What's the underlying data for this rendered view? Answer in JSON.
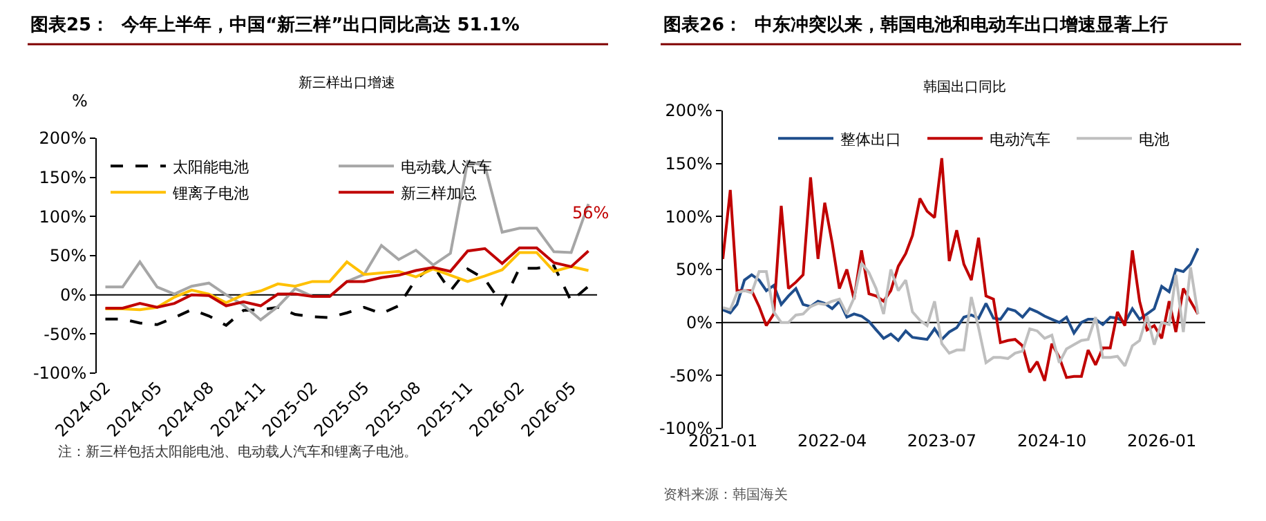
{
  "chart_data": [
    {
      "type": "line",
      "title": "图表25：  今年上半年，中国“新三样”出口同比高达 51.1%",
      "subtitle": "新三样出口增速",
      "ylabel": "%",
      "categories": [
        "2024-02",
        null,
        null,
        "2024-05",
        null,
        null,
        "2024-08",
        null,
        null,
        "2024-11",
        null,
        null,
        "2025-02",
        null,
        null,
        "2025-05",
        null,
        null,
        "2025-08",
        null,
        null,
        "2025-11",
        null,
        null,
        "2026-02",
        null,
        null,
        "2026-05",
        null
      ],
      "series": [
        {
          "name": "太阳能电池",
          "color": "#000000",
          "line_style": "dashed",
          "values": [
            -31,
            -31,
            -36,
            -38,
            -29,
            -19,
            -27,
            -39,
            -20,
            -19,
            -16,
            -25,
            -28,
            -29,
            -23,
            -16,
            -24,
            -14,
            20,
            37,
            5,
            33,
            20,
            -12,
            34,
            34,
            37,
            -8,
            11
          ]
        },
        {
          "name": "电动载人汽车",
          "color": "#a6a6a6",
          "values": [
            10,
            10,
            42,
            10,
            1,
            11,
            15,
            0,
            -13,
            -32,
            -15,
            8,
            -2,
            -2,
            17,
            26,
            63,
            45,
            57,
            38,
            53,
            170,
            165,
            80,
            85,
            85,
            55,
            54,
            116
          ]
        },
        {
          "name": "锂离子电池",
          "color": "#ffc000",
          "values": [
            -18,
            -18,
            -19,
            -16,
            -3,
            6,
            1,
            -10,
            0,
            5,
            14,
            11,
            17,
            17,
            42,
            26,
            28,
            30,
            23,
            33,
            25,
            17,
            24,
            32,
            54,
            54,
            30,
            36,
            31
          ]
        },
        {
          "name": "新三样加总",
          "color": "#c00000",
          "values": [
            -17,
            -17,
            -11,
            -16,
            -11,
            0,
            -1,
            -14,
            -9,
            -14,
            1,
            1,
            -2,
            -2,
            17,
            17,
            22,
            25,
            31,
            35,
            30,
            56,
            59,
            40,
            60,
            60,
            41,
            36,
            56
          ]
        }
      ],
      "ylim": [
        -100,
        200
      ],
      "yticks": [
        {
          "value": -100,
          "label": "-100%"
        },
        {
          "value": -50,
          "label": "-50%"
        },
        {
          "value": 0,
          "label": "0%"
        },
        {
          "value": 50,
          "label": "50%"
        },
        {
          "value": 100,
          "label": "100%"
        },
        {
          "value": 150,
          "label": "150%"
        },
        {
          "value": 200,
          "label": "200%"
        }
      ],
      "annotations": [
        {
          "text": "56%",
          "y": 56
        },
        "注：新三样包括太阳能电池、电动载人汽车和锂离子电池。"
      ],
      "ref_lines": [
        {
          "axis": "y",
          "value": 0,
          "color": "#000000"
        }
      ],
      "grid": false,
      "legend": "top",
      "marker": "none"
    },
    {
      "type": "line",
      "title": "图表26：  中东冲突以来，韩国电池和电动车出口增速显著上行",
      "subtitle": "韩国出口同比",
      "x": [
        "2021-01",
        "2021-02",
        "2021-03",
        "2021-04",
        "2021-05",
        "2021-06",
        "2021-07",
        "2021-08",
        "2021-09",
        "2021-10",
        "2021-11",
        "2021-12",
        "2022-01",
        "2022-02",
        "2022-03",
        "2022-04",
        "2022-05",
        "2022-06",
        "2022-07",
        "2022-08",
        "2022-09",
        "2022-10",
        "2022-11",
        "2022-12",
        "2023-01",
        "2023-02",
        "2023-03",
        "2023-04",
        "2023-05",
        "2023-06",
        "2023-07",
        "2023-08",
        "2023-09",
        "2023-10",
        "2023-11",
        "2023-12",
        "2024-01",
        "2024-02",
        "2024-03",
        "2024-04",
        "2024-05",
        "2024-06",
        "2024-07",
        "2024-08",
        "2024-09",
        "2024-10",
        "2024-11",
        "2024-12",
        "2025-01",
        "2025-02",
        "2025-03",
        "2025-04",
        "2025-05",
        "2025-06",
        "2025-07",
        "2025-08",
        "2025-09",
        "2025-10",
        "2025-11",
        "2025-12",
        "2026-01",
        "2026-02",
        "2026-03",
        "2026-04",
        "2026-05",
        "2026-06"
      ],
      "series": [
        {
          "name": "整体出口",
          "color": "#1f4e8c",
          "values": [
            12,
            9,
            17,
            40,
            45,
            40,
            30,
            35,
            17,
            25,
            32,
            17,
            15,
            20,
            18,
            13,
            20,
            5,
            8,
            6,
            1,
            -7,
            -15,
            -11,
            -17,
            -8,
            -14,
            -15,
            -16,
            -6,
            -16,
            -9,
            -5,
            5,
            7,
            4,
            18,
            4,
            3,
            13,
            11,
            5,
            13,
            10,
            6,
            3,
            0,
            5,
            -10,
            0,
            3,
            3,
            -2,
            5,
            4,
            0,
            13,
            3,
            8,
            13,
            34,
            29,
            50,
            48,
            55,
            70
          ]
        },
        {
          "name": "电动汽车",
          "color": "#c00000",
          "values": [
            60,
            125,
            30,
            30,
            30,
            15,
            -3,
            8,
            110,
            32,
            38,
            45,
            137,
            60,
            113,
            75,
            32,
            50,
            22,
            68,
            27,
            25,
            20,
            30,
            53,
            65,
            82,
            117,
            105,
            99,
            155,
            58,
            87,
            55,
            40,
            80,
            25,
            22,
            -19,
            -17,
            -16,
            -22,
            -47,
            -37,
            -55,
            -20,
            -33,
            -52,
            -51,
            -51,
            -26,
            -40,
            -24,
            -24,
            10,
            -3,
            68,
            20,
            -7,
            -3,
            -15,
            20,
            -9,
            32,
            20,
            8
          ]
        },
        {
          "name": "电池",
          "color": "#bfbfbf",
          "values": [
            14,
            12,
            28,
            30,
            28,
            48,
            48,
            10,
            0,
            0,
            7,
            8,
            15,
            18,
            17,
            20,
            22,
            8,
            23,
            56,
            47,
            32,
            8,
            50,
            30,
            40,
            10,
            2,
            -3,
            20,
            -20,
            -29,
            -26,
            -26,
            24,
            -5,
            -38,
            -33,
            -33,
            -34,
            -29,
            -27,
            -6,
            -8,
            -15,
            -12,
            -38,
            -25,
            -21,
            -17,
            -16,
            5,
            -33,
            -33,
            -32,
            -41,
            -22,
            -17,
            6,
            -21,
            0,
            -2,
            45,
            -9,
            52,
            8
          ]
        }
      ],
      "xlim": [
        "2021-01",
        "2026-07"
      ],
      "xticks": [
        "2021-01",
        "2022-04",
        "2023-07",
        "2024-10",
        "2026-01"
      ],
      "ylim": [
        -100,
        200
      ],
      "yticks": [
        {
          "value": -100,
          "label": "-100%"
        },
        {
          "value": -50,
          "label": "-50%"
        },
        {
          "value": 0,
          "label": "0%"
        },
        {
          "value": 50,
          "label": "50%"
        },
        {
          "value": 100,
          "label": "100%"
        },
        {
          "value": 150,
          "label": "150%"
        },
        {
          "value": 200,
          "label": "200%"
        }
      ],
      "annotations": [
        "资料来源：韩国海关"
      ],
      "ref_lines": [
        {
          "axis": "y",
          "value": 0,
          "color": "#000000"
        }
      ],
      "grid": false,
      "legend": "top",
      "marker": "none"
    }
  ]
}
